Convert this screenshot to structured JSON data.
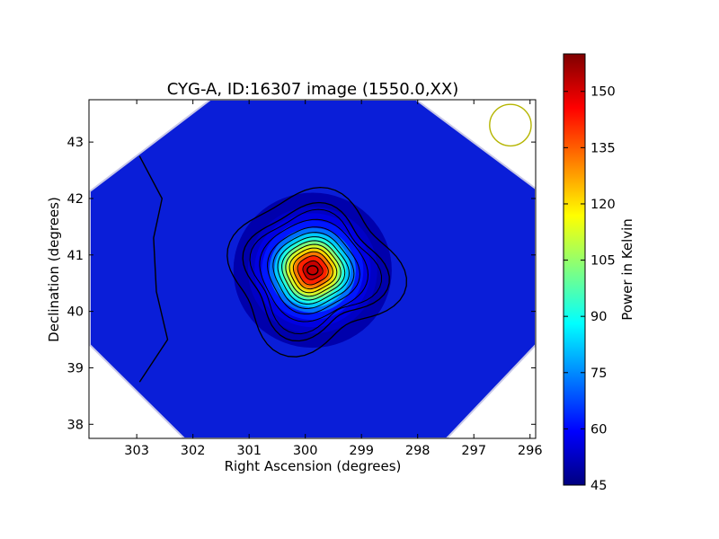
{
  "chart_data": {
    "type": "heatmap",
    "title": "CYG-A, ID:16307 image (1550.0,XX)",
    "xlabel": "Right Ascension (degrees)",
    "ylabel": "Declination (degrees)",
    "colorbar_label": "Power in Kelvin",
    "x_ticks": [
      303,
      302,
      301,
      300,
      299,
      298,
      297,
      296
    ],
    "y_ticks": [
      38,
      39,
      40,
      41,
      42,
      43
    ],
    "colorbar_ticks": [
      45,
      60,
      75,
      90,
      105,
      120,
      135,
      150
    ],
    "xlim": [
      303.85,
      295.9
    ],
    "ylim": [
      37.75,
      43.75
    ],
    "colorbar_range": [
      45,
      160
    ],
    "colormap": "jet",
    "background_level": 50,
    "peak": {
      "ra": 299.87,
      "dec": 40.73,
      "value": 160
    },
    "contour_levels": [
      50,
      53,
      56,
      62,
      72,
      82,
      92,
      102,
      112,
      122,
      132,
      142,
      152
    ],
    "beam_marker": {
      "ra": 296.35,
      "dec": 43.3,
      "radius_deg": 0.37,
      "color": "#b5b500"
    },
    "edge_contour": [
      [
        302.95,
        42.75
      ],
      [
        302.55,
        42.0
      ],
      [
        302.7,
        41.3
      ],
      [
        302.65,
        40.35
      ],
      [
        302.45,
        39.5
      ],
      [
        302.95,
        38.75
      ]
    ]
  }
}
